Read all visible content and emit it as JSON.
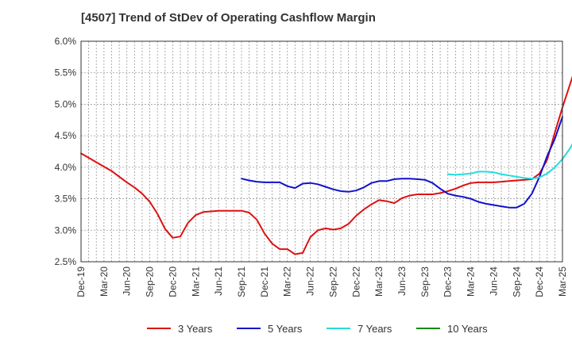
{
  "chart_data": {
    "type": "line",
    "title": "[4507]  Trend of StDev of Operating Cashflow Margin",
    "xlabel": "",
    "ylabel": "",
    "ylim": [
      2.5,
      6.0
    ],
    "yticks": [
      "2.5%",
      "3.0%",
      "3.5%",
      "4.0%",
      "4.5%",
      "5.0%",
      "5.5%",
      "6.0%"
    ],
    "xticks": [
      "Dec-19",
      "Mar-20",
      "Jun-20",
      "Sep-20",
      "Dec-20",
      "Mar-21",
      "Jun-21",
      "Sep-21",
      "Dec-21",
      "Mar-22",
      "Jun-22",
      "Sep-22",
      "Dec-22",
      "Mar-23",
      "Jun-23",
      "Sep-23",
      "Dec-23",
      "Mar-24",
      "Jun-24",
      "Sep-24",
      "Dec-24",
      "Mar-25"
    ],
    "x_start": "Dec-19",
    "x_step": "1 month",
    "grid": true,
    "legend_position": "bottom",
    "series": [
      {
        "name": "3 Years",
        "color": "#dd1111",
        "start_month_index": 0,
        "values": [
          4.22,
          4.15,
          4.08,
          4.01,
          3.94,
          3.85,
          3.76,
          3.68,
          3.58,
          3.45,
          3.26,
          3.02,
          2.88,
          2.9,
          3.12,
          3.24,
          3.29,
          3.3,
          3.31,
          3.31,
          3.31,
          3.31,
          3.28,
          3.17,
          2.95,
          2.79,
          2.7,
          2.7,
          2.62,
          2.64,
          2.89,
          3.0,
          3.03,
          3.01,
          3.03,
          3.1,
          3.23,
          3.33,
          3.41,
          3.48,
          3.46,
          3.43,
          3.51,
          3.55,
          3.57,
          3.57,
          3.57,
          3.59,
          3.62,
          3.66,
          3.71,
          3.75,
          3.76,
          3.76,
          3.76,
          3.77,
          3.78,
          3.79,
          3.8,
          3.81,
          3.9,
          4.12,
          4.55,
          4.95,
          5.32,
          5.69
        ]
      },
      {
        "name": "5 Years",
        "color": "#1111cc",
        "start_month_index": 21,
        "values": [
          3.82,
          3.79,
          3.77,
          3.76,
          3.76,
          3.76,
          3.7,
          3.67,
          3.74,
          3.75,
          3.73,
          3.69,
          3.65,
          3.62,
          3.61,
          3.63,
          3.68,
          3.75,
          3.78,
          3.78,
          3.81,
          3.82,
          3.82,
          3.81,
          3.8,
          3.75,
          3.66,
          3.58,
          3.55,
          3.53,
          3.5,
          3.45,
          3.42,
          3.4,
          3.38,
          3.36,
          3.36,
          3.42,
          3.58,
          3.85,
          4.18,
          4.45,
          4.8
        ]
      },
      {
        "name": "7 Years",
        "color": "#22dddd",
        "start_month_index": 48,
        "values": [
          3.89,
          3.88,
          3.89,
          3.9,
          3.93,
          3.93,
          3.92,
          3.89,
          3.87,
          3.85,
          3.83,
          3.82,
          3.84,
          3.9,
          4.0,
          4.13,
          4.3,
          4.52
        ]
      },
      {
        "name": "10 Years",
        "color": "#118811",
        "start_month_index": 0,
        "values": []
      }
    ]
  }
}
